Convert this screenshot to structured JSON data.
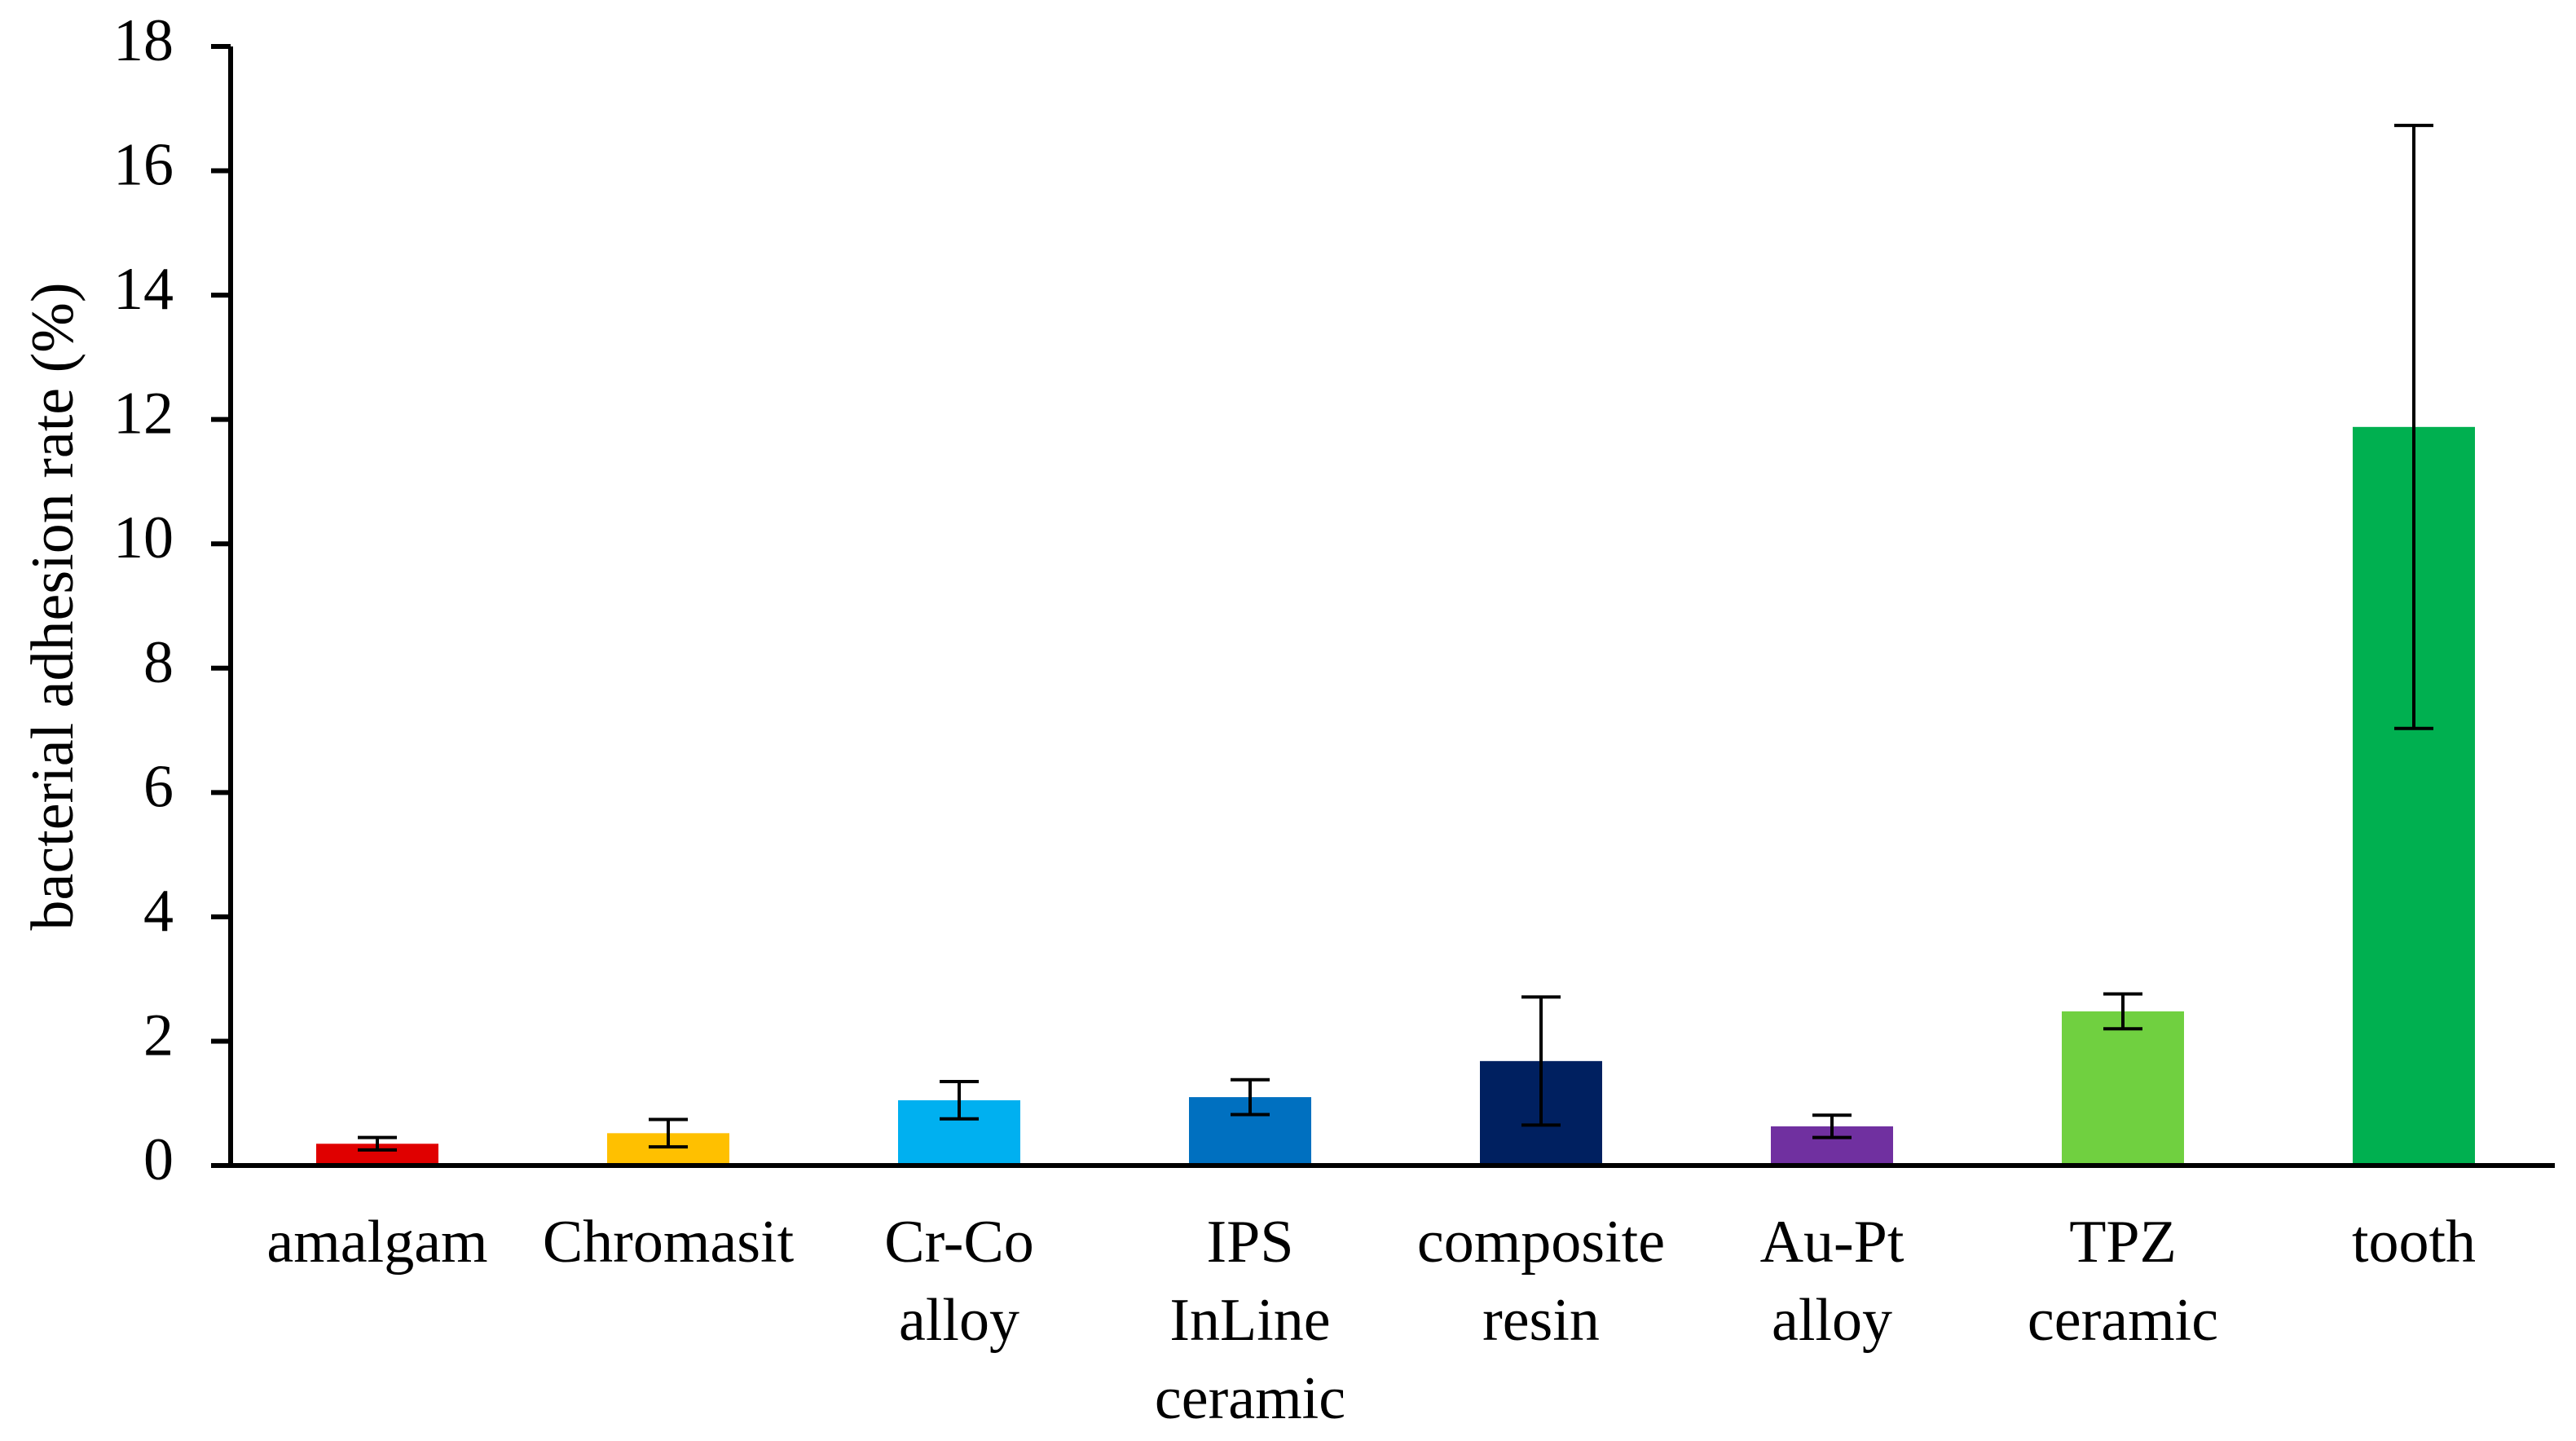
{
  "chart_data": {
    "type": "bar",
    "y_label": "bacterial adhesion rate (%)",
    "categories": [
      [
        "amalgam"
      ],
      [
        "Chromasit"
      ],
      [
        "Cr-Co",
        "alloy"
      ],
      [
        "IPS",
        "InLine",
        "ceramic"
      ],
      [
        "composite",
        "resin"
      ],
      [
        "Au-Pt",
        "alloy"
      ],
      [
        "TPZ",
        "ceramic"
      ],
      [
        "tooth"
      ]
    ],
    "values": [
      0.35,
      0.52,
      1.05,
      1.1,
      1.68,
      0.63,
      2.48,
      11.88
    ],
    "errors": [
      0.1,
      0.22,
      0.3,
      0.28,
      1.03,
      0.18,
      0.28,
      4.85
    ],
    "colors": [
      "#e00000",
      "#ffc000",
      "#00b0f0",
      "#0070c0",
      "#002060",
      "#7030a0",
      "#70d040",
      "#00b050"
    ],
    "ylim": [
      0,
      18
    ],
    "yticks": [
      0,
      2,
      4,
      6,
      8,
      10,
      12,
      14,
      16,
      18
    ],
    "grid": false
  }
}
